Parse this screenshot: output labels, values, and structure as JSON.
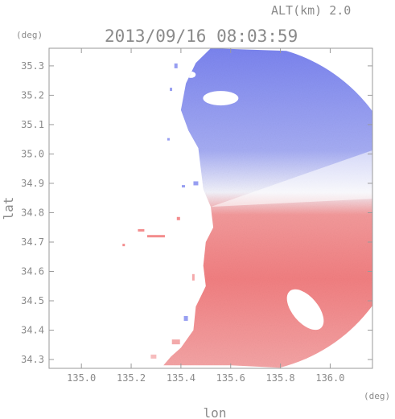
{
  "header": {
    "altitude_label": "ALT(km) 2.0",
    "timestamp": "2013/09/16 08:03:59",
    "y_unit": "(deg)",
    "x_unit": "(deg)"
  },
  "chart_data": {
    "type": "heatmap",
    "title": "2013/09/16 08:03:59",
    "xlabel": "lon",
    "ylabel": "lat",
    "xlim": [
      134.87,
      136.17
    ],
    "ylim": [
      34.27,
      35.36
    ],
    "x_ticks": [
      135.0,
      135.2,
      135.4,
      135.6,
      135.8,
      136.0
    ],
    "x_tick_labels": [
      "135.0",
      "135.2",
      "135.4",
      "135.6",
      "135.8",
      "136.0"
    ],
    "y_ticks": [
      34.3,
      34.4,
      34.5,
      34.6,
      34.7,
      34.8,
      34.9,
      35.0,
      35.1,
      35.2,
      35.3
    ],
    "y_tick_labels": [
      "34.3",
      "34.4",
      "34.5",
      "34.6",
      "34.7",
      "34.8",
      "34.9",
      "35.0",
      "35.1",
      "35.2",
      "35.3"
    ],
    "radar_center": {
      "lon": 135.52,
      "lat": 34.82
    },
    "radar_range_deg": 0.66,
    "colors": {
      "toward": "#7d86f0",
      "away": "#f2787a",
      "neutral": "#ffffff"
    },
    "grid": false
  }
}
